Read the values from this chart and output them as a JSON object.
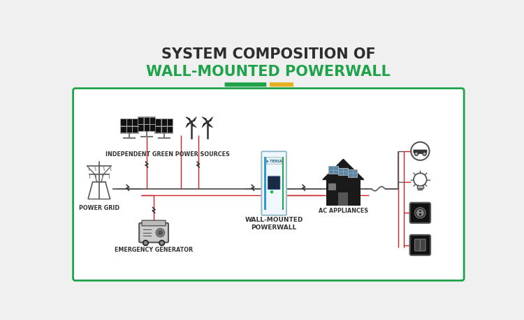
{
  "title_line1": "SYSTEM COMPOSITION OF",
  "title_line2": "WALL-MOUNTED POWERWALL",
  "title_color1": "#2d2d2d",
  "title_color2": "#1fa34a",
  "bg_color": "#f0f0f0",
  "box_edge_color": "#1fa34a",
  "box_bg": "#ffffff",
  "green_bar_color": "#1fa34a",
  "yellow_bar_color": "#e8b020",
  "labels": {
    "solar": "INDEPENDENT GREEN POWER SOURCES",
    "grid": "POWER GRID",
    "generator": "EMERGENCY GENERATOR",
    "battery": "WALL-MOUNTED\nPOWERWALL",
    "house": "AC APPLIANCES"
  },
  "line_color": "#555555",
  "red_line_color": "#cc2222",
  "font_size_label": 5.8
}
